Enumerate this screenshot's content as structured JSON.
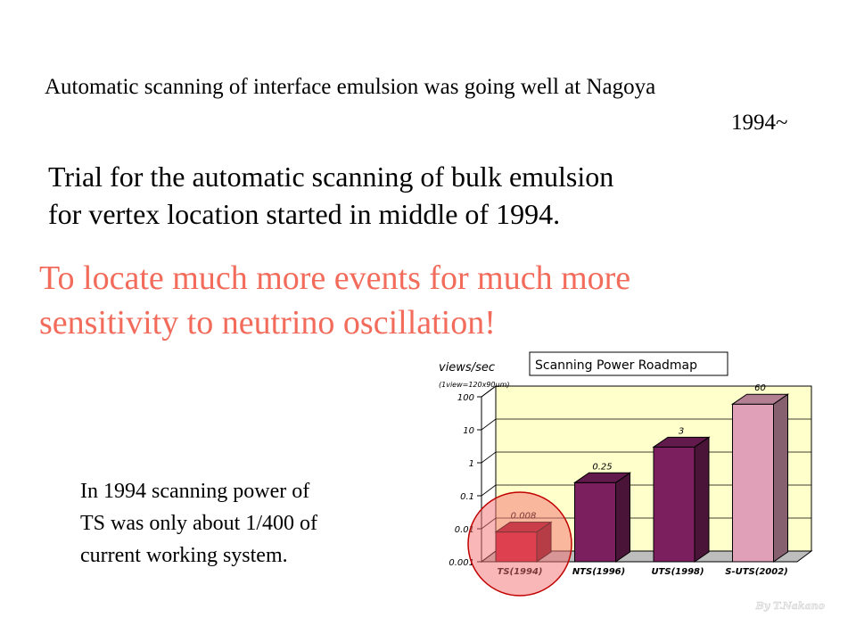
{
  "text": {
    "line1": "Automatic scanning of interface emulsion was going well at Nagoya",
    "line2": "1994~",
    "trial_line1": "Trial for the automatic scanning of bulk emulsion",
    "trial_line2": "for vertex location started in middle of 1994.",
    "goal_line1": "To locate much more events for much more",
    "goal_line2": "sensitivity to neutrino oscillation!",
    "note_line1": "In 1994 scanning power of",
    "note_line2": "TS was only about 1/400 of",
    "note_line3": "current working system.",
    "credit": "By T.Nakano"
  },
  "colors": {
    "goal_text": "#f26b5b",
    "plot_bg": "#ffffcc",
    "highlight_circle": "#f47070"
  },
  "chart_data": {
    "type": "bar",
    "title": "Scanning Power Roadmap",
    "ylabel": "views/sec",
    "ylabel_note": "(1view=120x90μm)",
    "yscale": "log",
    "ylim": [
      0.001,
      100
    ],
    "yticks": [
      {
        "value": 0.001,
        "label": "0.001"
      },
      {
        "value": 0.01,
        "label": "0.01"
      },
      {
        "value": 0.1,
        "label": "0.1"
      },
      {
        "value": 1,
        "label": "1"
      },
      {
        "value": 10,
        "label": "10"
      },
      {
        "value": 100,
        "label": "100"
      }
    ],
    "categories": [
      "TS(1994)",
      "NTS(1996)",
      "UTS(1998)",
      "S-UTS(2002)"
    ],
    "values": [
      0.008,
      0.25,
      3,
      60
    ],
    "value_labels": [
      "0.008",
      "0.25",
      "3",
      "60"
    ],
    "bar_colors": [
      "#c8102e",
      "#7b1f5e",
      "#7b1f5e",
      "#e0a0b8"
    ],
    "grid": true,
    "highlight": "TS(1994)"
  }
}
